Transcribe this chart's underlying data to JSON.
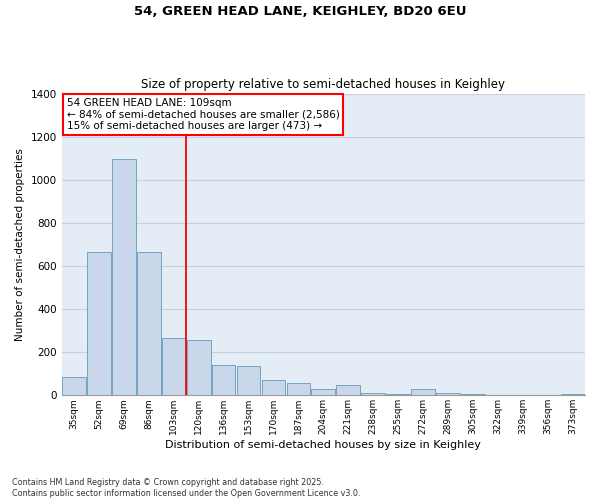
{
  "title1": "54, GREEN HEAD LANE, KEIGHLEY, BD20 6EU",
  "title2": "Size of property relative to semi-detached houses in Keighley",
  "xlabel": "Distribution of semi-detached houses by size in Keighley",
  "ylabel": "Number of semi-detached properties",
  "categories": [
    "35sqm",
    "52sqm",
    "69sqm",
    "86sqm",
    "103sqm",
    "120sqm",
    "136sqm",
    "153sqm",
    "170sqm",
    "187sqm",
    "204sqm",
    "221sqm",
    "238sqm",
    "255sqm",
    "272sqm",
    "289sqm",
    "305sqm",
    "322sqm",
    "339sqm",
    "356sqm",
    "373sqm"
  ],
  "values": [
    85,
    665,
    1095,
    665,
    265,
    255,
    140,
    135,
    70,
    55,
    30,
    50,
    10,
    5,
    30,
    10,
    5,
    0,
    0,
    0,
    5
  ],
  "bar_color": "#c8d8ea",
  "bar_edge_color": "#6699bb",
  "vline_color": "red",
  "vline_x_index": 4.5,
  "annotation_title": "54 GREEN HEAD LANE: 109sqm",
  "annotation_line1": "← 84% of semi-detached houses are smaller (2,586)",
  "annotation_line2": "15% of semi-detached houses are larger (473) →",
  "ylim": [
    0,
    1400
  ],
  "yticks": [
    0,
    200,
    400,
    600,
    800,
    1000,
    1200,
    1400
  ],
  "footer_line1": "Contains HM Land Registry data © Crown copyright and database right 2025.",
  "footer_line2": "Contains public sector information licensed under the Open Government Licence v3.0.",
  "grid_color": "#c5d0dd",
  "background_color": "#e4ecf5",
  "fig_bg": "#ffffff"
}
